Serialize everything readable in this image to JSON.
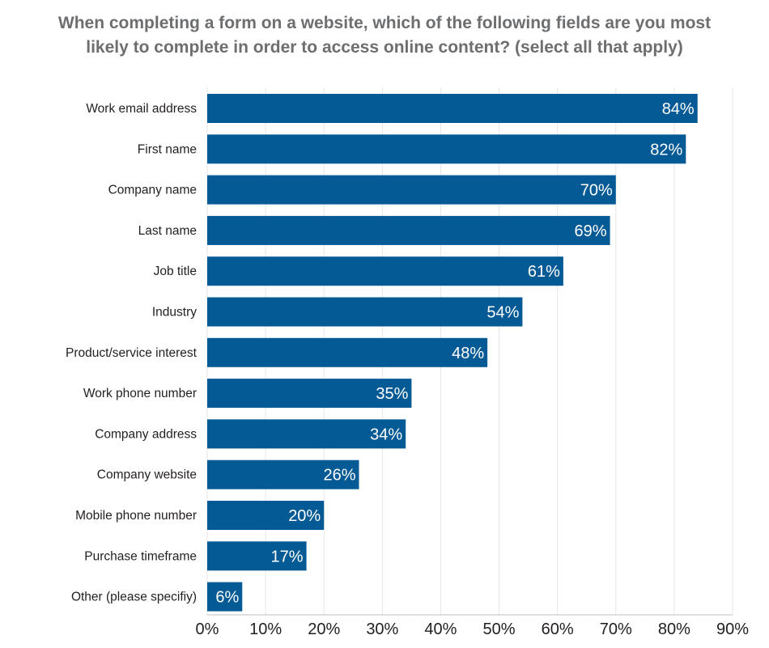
{
  "chart_data": {
    "type": "bar",
    "orientation": "horizontal",
    "title_lines": [
      "When completing a form on a website, which of the following fields are you most",
      "likely to complete in order to access online content? (select all that apply)"
    ],
    "categories": [
      "Work email address",
      "First name",
      "Company name",
      "Last name",
      "Job title",
      "Industry",
      "Product/service interest",
      "Work phone number",
      "Company address",
      "Company website",
      "Mobile phone number",
      "Purchase timeframe",
      "Other (please specifiy)"
    ],
    "values": [
      84,
      82,
      70,
      69,
      61,
      54,
      48,
      35,
      34,
      26,
      20,
      17,
      6
    ],
    "value_labels": [
      "84%",
      "82%",
      "70%",
      "69%",
      "61%",
      "54%",
      "48%",
      "35%",
      "34%",
      "26%",
      "20%",
      "17%",
      "6%"
    ],
    "xlim": [
      0,
      90
    ],
    "x_ticks": [
      0,
      10,
      20,
      30,
      40,
      50,
      60,
      70,
      80,
      90
    ],
    "x_tick_labels": [
      "0%",
      "10%",
      "20%",
      "30%",
      "40%",
      "50%",
      "60%",
      "70%",
      "80%",
      "90%"
    ],
    "grid": true,
    "bar_color": "#045a95",
    "legend": "none"
  }
}
